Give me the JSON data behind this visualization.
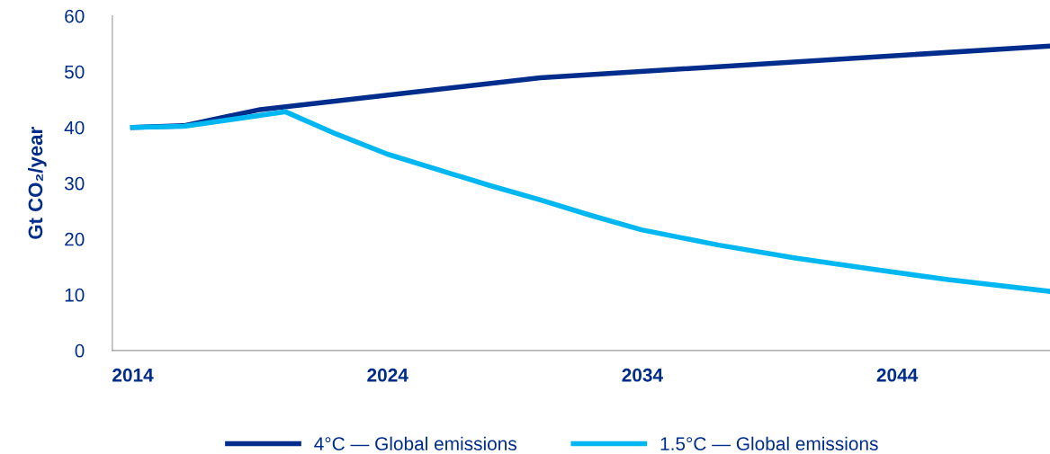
{
  "chart_data": {
    "type": "line",
    "ylabel": "Gt CO₂/year",
    "xlim": [
      2013.2,
      2050
    ],
    "xticks": [
      2014,
      2024,
      2034,
      2044
    ],
    "ylim": [
      0,
      60
    ],
    "yticks": [
      0,
      10,
      20,
      30,
      40,
      50,
      60
    ],
    "grid": false,
    "legend": "bottom",
    "marker": "none",
    "line_style": "solid",
    "series": [
      {
        "name": "4°C — Global emissions",
        "color": "#002d8c",
        "x": [
          2014,
          2016,
          2019,
          2030,
          2050
        ],
        "values": [
          40,
          40.3,
          43.2,
          48.9,
          54.6
        ]
      },
      {
        "name": "1.5°C — Global emissions",
        "color": "#00b7f1",
        "x": [
          2014,
          2016,
          2020,
          2022,
          2024,
          2026,
          2028,
          2030,
          2032,
          2034,
          2037,
          2040,
          2043,
          2046,
          2050
        ],
        "values": [
          40,
          40.2,
          42.8,
          38.8,
          35.2,
          32.4,
          29.6,
          27.0,
          24.2,
          21.6,
          18.9,
          16.6,
          14.6,
          12.7,
          10.6
        ]
      }
    ]
  }
}
